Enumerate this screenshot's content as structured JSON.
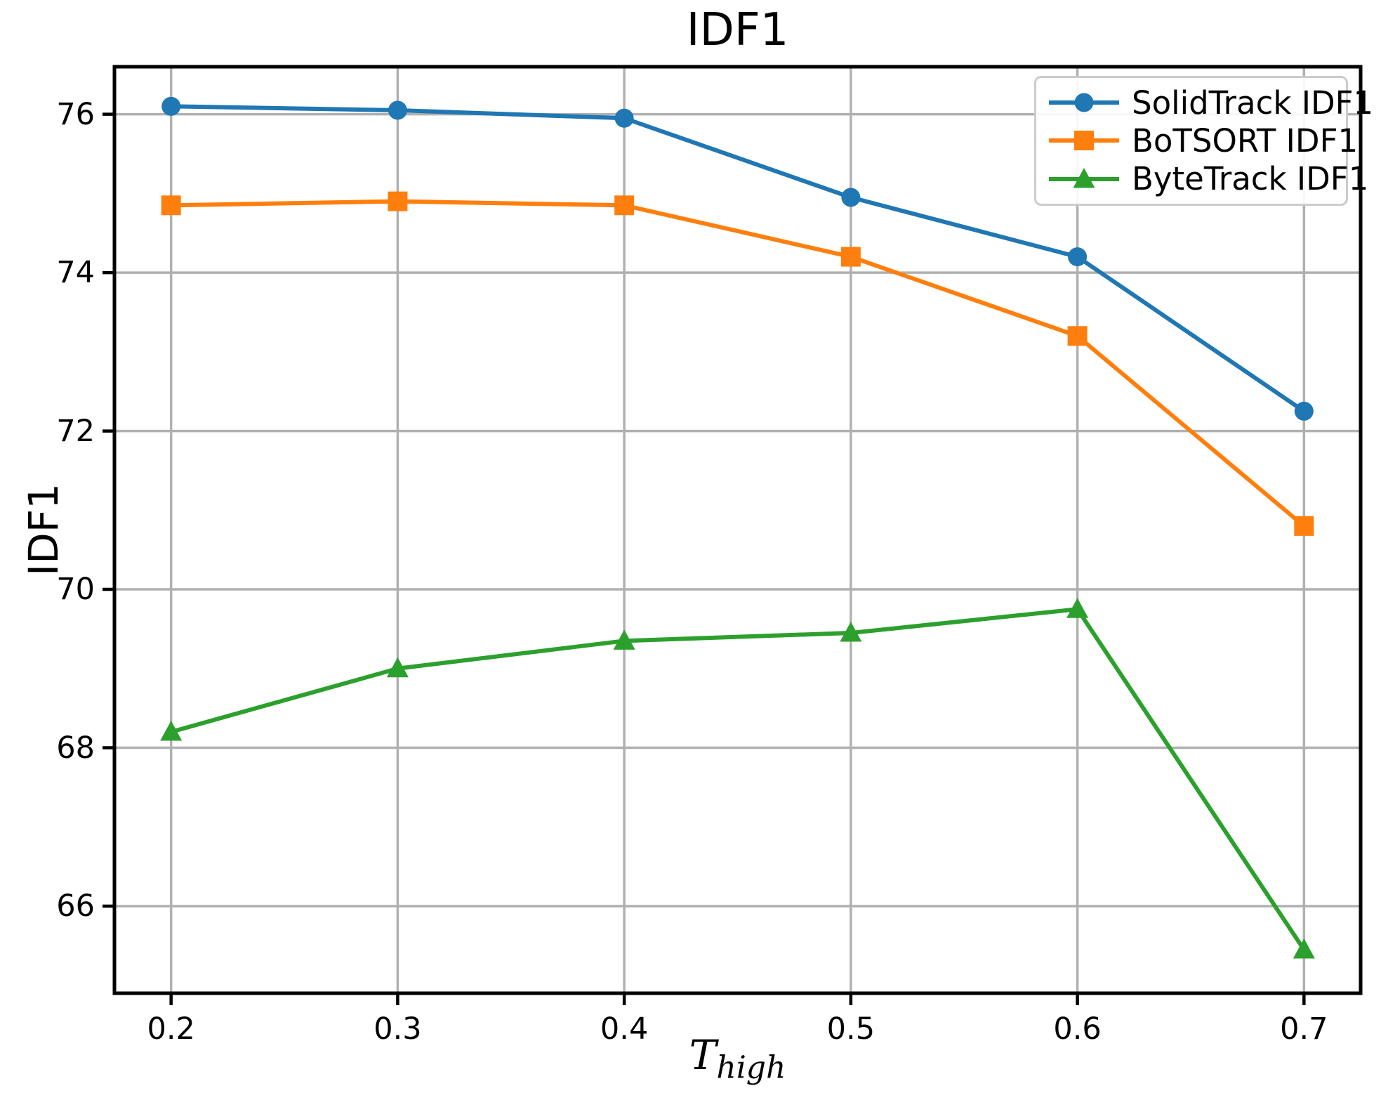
{
  "figure": {
    "background": "#ffffff"
  },
  "chart_data": {
    "type": "line",
    "title": "IDF1",
    "xlabel": "T_high",
    "xlabel_var": "T",
    "xlabel_subscript": "high",
    "ylabel": "IDF1",
    "x": [
      0.2,
      0.3,
      0.4,
      0.5,
      0.6,
      0.7
    ],
    "x_tick_labels": [
      "0.2",
      "0.3",
      "0.4",
      "0.5",
      "0.6",
      "0.7"
    ],
    "y_ticks": [
      66,
      68,
      70,
      72,
      74,
      76
    ],
    "xlim": [
      0.175,
      0.725
    ],
    "ylim": [
      64.9,
      76.6
    ],
    "grid": true,
    "legend_position": "upper right",
    "series": [
      {
        "name": "SolidTrack IDF1",
        "color": "#1f77b4",
        "marker": "circle",
        "values": [
          76.1,
          76.05,
          75.95,
          74.95,
          74.2,
          72.25
        ]
      },
      {
        "name": "BoTSORT IDF1",
        "color": "#ff7f0e",
        "marker": "square",
        "values": [
          74.85,
          74.9,
          74.85,
          74.2,
          73.2,
          70.8
        ]
      },
      {
        "name": "ByteTrack IDF1",
        "color": "#2ca02c",
        "marker": "triangle",
        "values": [
          68.2,
          69.0,
          69.35,
          69.45,
          69.75,
          65.45
        ]
      }
    ],
    "colors": {
      "grid": "#b0b0b0",
      "spine": "#000000",
      "text": "#000000"
    }
  }
}
